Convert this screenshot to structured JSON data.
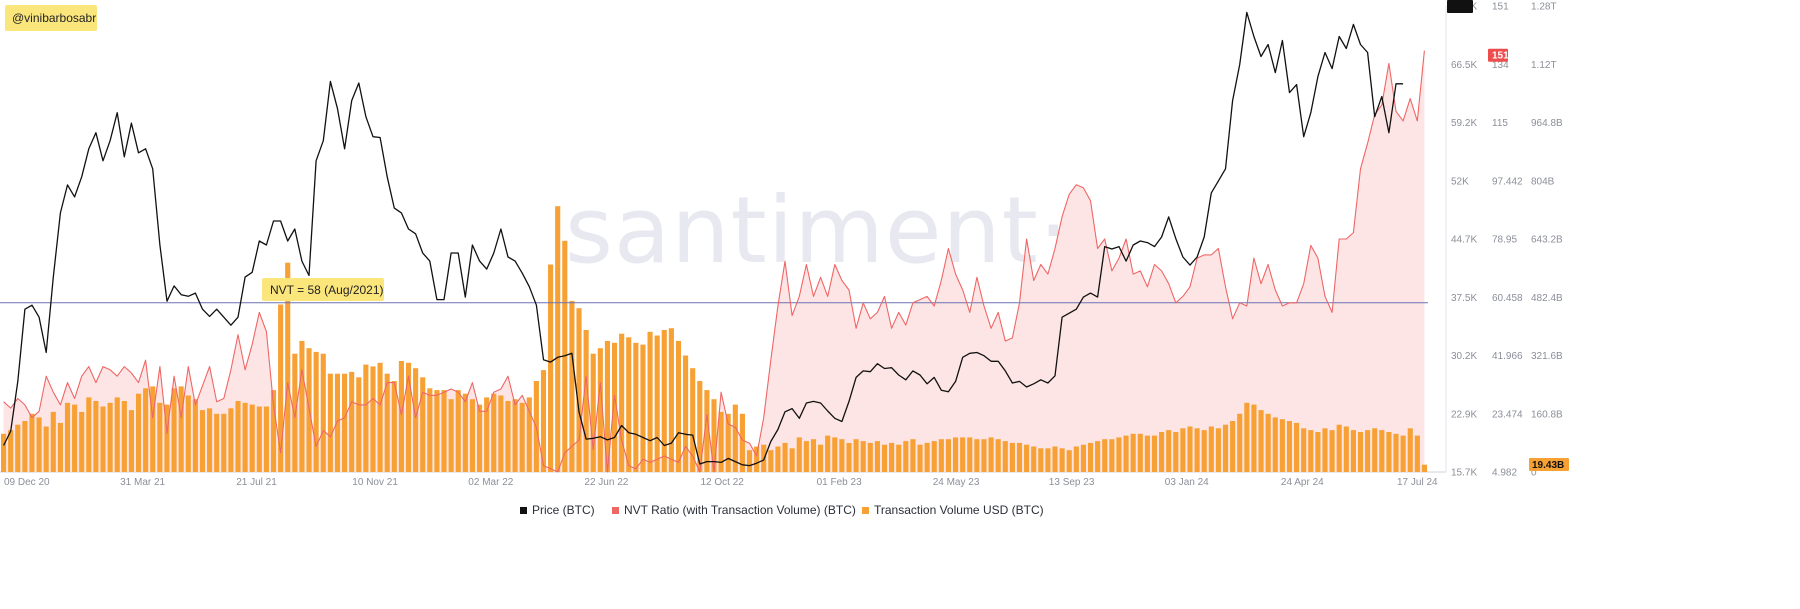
{
  "handle": "@vinibarbosabr",
  "watermark": "santiment·",
  "annotation": "NVT = 58 (Aug/2021)",
  "chart_data": {
    "type": "bar",
    "title": "",
    "x_labels": [
      "09 Dec 20",
      "31 Mar 21",
      "21 Jul 21",
      "10 Nov 21",
      "02 Mar 22",
      "22 Jun 22",
      "12 Oct 22",
      "01 Feb 23",
      "24 May 23",
      "13 Sep 23",
      "03 Jan 24",
      "24 Apr 24",
      "17 Jul 24"
    ],
    "axes": {
      "price": {
        "ticks": [
          "73.8K",
          "66.5K",
          "59.2K",
          "52K",
          "44.7K",
          "37.5K",
          "30.2K",
          "22.9K",
          "15.7K"
        ],
        "range": [
          15700,
          73800
        ]
      },
      "nvt": {
        "ticks": [
          "151",
          "134",
          "115",
          "97.442",
          "78.95",
          "60.458",
          "41.966",
          "23.474",
          "4.982"
        ],
        "range": [
          4.982,
          151
        ]
      },
      "volume": {
        "ticks": [
          "1.28T",
          "1.12T",
          "964.8B",
          "804B",
          "643.2B",
          "482.4B",
          "321.6B",
          "160.8B",
          "0"
        ],
        "range": [
          0,
          1280
        ]
      }
    },
    "current": {
      "price_label": "64.1K",
      "nvt_label": "151",
      "volume_label": "19.43B"
    },
    "reference_line": {
      "nvt": 58
    },
    "legend": [
      {
        "name": "Price (BTC)",
        "color": "#111111"
      },
      {
        "name": "NVT Ratio (with Transaction Volume) (BTC)",
        "color": "#ef6666"
      },
      {
        "name": "Transaction Volume USD (BTC)",
        "color": "#f7a135"
      }
    ],
    "colors": {
      "price": "#111111",
      "nvt": "#ef6666",
      "nvt_fill": "#fde0e0",
      "volume": "#f7a135",
      "ref_line": "#6b72b3",
      "note_bg": "#fbe67c"
    },
    "series": [
      {
        "name": "Price (BTC)",
        "values": [
          19000,
          20800,
          27000,
          36000,
          36500,
          35000,
          30600,
          40000,
          48000,
          51500,
          50000,
          52500,
          56000,
          58000,
          54500,
          57000,
          60500,
          55000,
          59200,
          55500,
          56000,
          53500,
          44000,
          37000,
          38900,
          37800,
          37600,
          38000,
          36000,
          35100,
          36000,
          35000,
          34000,
          35000,
          40000,
          40600,
          44500,
          44000,
          47000,
          47000,
          44500,
          46000,
          42000,
          40200,
          54500,
          57000,
          64400,
          61000,
          56000,
          62000,
          64200,
          60000,
          57500,
          57400,
          52500,
          48600,
          48000,
          46000,
          45400,
          43000,
          42000,
          37200,
          37200,
          43000,
          43000,
          37500,
          44000,
          42000,
          41000,
          43000,
          46000,
          42500,
          42000,
          40500,
          38800,
          36500,
          29700,
          29400,
          30000,
          30200,
          30500,
          23200,
          19800,
          19900,
          20100,
          19700,
          20000,
          21500,
          20600,
          20400,
          20000,
          19600,
          20000,
          19000,
          19300,
          20600,
          20400,
          20300,
          16700,
          17000,
          17000,
          16900,
          17400,
          17000,
          16600,
          16500,
          16800,
          17200,
          19500,
          21000,
          23200,
          23600,
          22400,
          24300,
          24500,
          24300,
          23300,
          22400,
          22000,
          24500,
          27500,
          28300,
          28200,
          29200,
          28600,
          28700,
          27800,
          27200,
          28300,
          27800,
          26700,
          27500,
          25900,
          25700,
          27000,
          30000,
          30500,
          30600,
          30200,
          29500,
          29500,
          28300,
          26800,
          27000,
          26300,
          26700,
          27200,
          26800,
          27700,
          35000,
          35500,
          36000,
          37500,
          38000,
          37500,
          43800,
          43500,
          43800,
          42000,
          44000,
          44500,
          44300,
          43800,
          45000,
          47500,
          44800,
          42500,
          41500,
          42500,
          45000,
          50500,
          52000,
          53500,
          62000,
          66500,
          73000,
          70000,
          67500,
          69000,
          65500,
          69500,
          63000,
          64000,
          57500,
          60500,
          65000,
          68000,
          66000,
          70000,
          68500,
          71500,
          69000,
          68000,
          60000,
          62500,
          58000,
          64100,
          64100
        ]
      },
      {
        "name": "NVT Ratio (with Transaction Volume) (BTC)",
        "values": [
          27,
          25,
          28,
          26,
          22,
          24,
          35,
          30,
          26,
          33,
          28,
          35,
          38,
          33,
          38,
          37,
          35,
          38,
          36,
          33,
          40,
          22,
          38,
          17,
          35,
          22,
          38,
          26,
          32,
          38,
          27,
          28,
          37,
          48,
          37,
          45,
          55,
          49,
          26,
          11,
          33,
          22,
          37,
          25,
          13,
          18,
          16,
          21,
          22,
          27,
          26,
          26,
          28,
          26,
          33,
          33,
          23,
          35,
          22,
          30,
          29,
          29,
          30,
          31,
          30,
          27,
          33,
          24,
          24,
          30,
          31,
          35,
          26,
          29,
          24,
          19,
          7,
          6,
          5,
          11,
          13,
          15,
          35,
          12,
          33,
          5,
          29,
          15,
          7,
          6,
          9,
          8,
          9,
          10,
          9,
          8,
          13,
          10,
          5,
          23,
          5,
          30,
          20,
          19,
          15,
          14,
          10,
          22,
          40,
          57,
          71,
          54,
          60,
          70,
          60,
          66,
          60,
          70,
          65,
          62,
          50,
          58,
          53,
          55,
          60,
          50,
          55,
          51,
          58,
          59,
          60,
          57,
          65,
          75,
          67,
          62,
          55,
          66,
          57,
          50,
          55,
          46,
          47,
          58,
          78,
          65,
          70,
          67,
          75,
          85,
          92,
          95,
          94,
          90,
          75,
          78,
          68,
          72,
          78,
          67,
          68,
          63,
          70,
          68,
          64,
          58,
          60,
          63,
          72,
          73,
          73,
          75,
          63,
          53,
          58,
          57,
          72,
          64,
          70,
          62,
          57,
          58,
          58,
          64,
          76,
          72,
          60,
          55,
          78,
          78,
          80,
          100,
          108,
          117,
          120,
          133,
          118,
          115,
          122,
          115,
          137,
          115,
          115,
          100,
          151,
          151
        ]
      },
      {
        "name": "Transaction Volume USD (BTC)",
        "values": [
          105,
          115,
          130,
          140,
          160,
          150,
          125,
          165,
          135,
          190,
          185,
          165,
          205,
          195,
          180,
          190,
          205,
          195,
          170,
          215,
          230,
          235,
          190,
          185,
          230,
          235,
          210,
          200,
          170,
          175,
          160,
          160,
          175,
          195,
          190,
          185,
          180,
          180,
          225,
          460,
          575,
          325,
          360,
          340,
          330,
          325,
          270,
          270,
          270,
          275,
          260,
          295,
          290,
          300,
          270,
          250,
          305,
          300,
          285,
          260,
          230,
          225,
          225,
          200,
          225,
          215,
          200,
          185,
          205,
          215,
          210,
          195,
          200,
          190,
          205,
          250,
          280,
          570,
          730,
          635,
          470,
          450,
          390,
          325,
          340,
          360,
          355,
          380,
          370,
          355,
          350,
          385,
          375,
          390,
          395,
          360,
          320,
          285,
          250,
          225,
          200,
          165,
          160,
          185,
          160,
          60,
          70,
          75,
          60,
          70,
          80,
          65,
          95,
          85,
          90,
          75,
          100,
          95,
          90,
          80,
          90,
          85,
          80,
          85,
          75,
          80,
          75,
          85,
          90,
          75,
          80,
          85,
          90,
          90,
          95,
          95,
          95,
          90,
          90,
          95,
          90,
          85,
          80,
          80,
          75,
          70,
          65,
          65,
          70,
          65,
          60,
          70,
          75,
          80,
          85,
          90,
          90,
          95,
          100,
          105,
          105,
          100,
          100,
          110,
          115,
          110,
          120,
          125,
          120,
          115,
          125,
          120,
          130,
          140,
          160,
          190,
          185,
          170,
          160,
          150,
          145,
          140,
          135,
          120,
          115,
          110,
          120,
          115,
          130,
          125,
          115,
          110,
          115,
          120,
          115,
          110,
          105,
          100,
          120,
          100,
          20
        ]
      }
    ]
  }
}
